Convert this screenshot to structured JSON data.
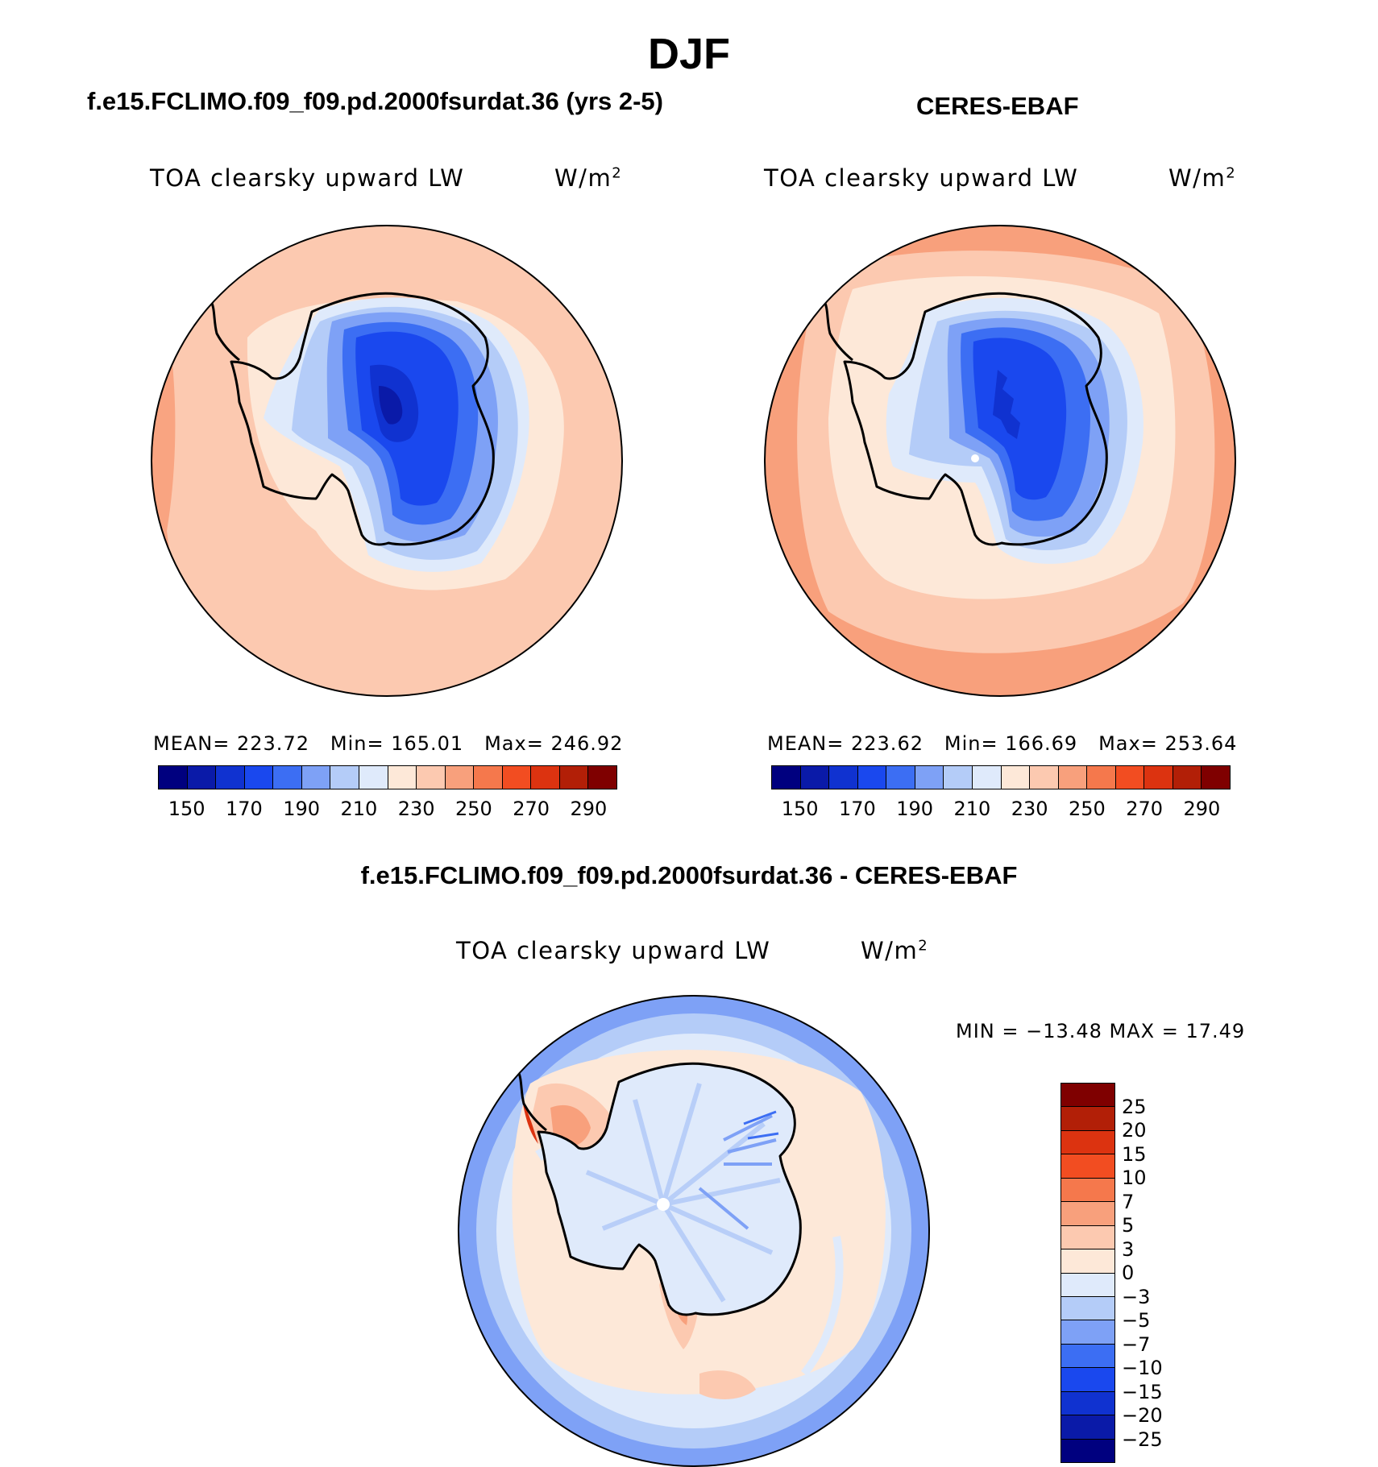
{
  "figure": {
    "title": "DJF",
    "panels": [
      {
        "id": "model",
        "header": "f.e15.FCLIMO.f09_f09.pd.2000fsurdat.36 (yrs 2-5)",
        "variable": "TOA clearsky upward LW",
        "units_base": "W/m",
        "units_exp": "2",
        "stats": {
          "mean_label": "MEAN=",
          "mean": "223.72",
          "min_label": "Min=",
          "min": "165.01",
          "max_label": "Max=",
          "max": "246.92"
        }
      },
      {
        "id": "obs",
        "header": "CERES-EBAF",
        "variable": "TOA clearsky upward LW",
        "units_base": "W/m",
        "units_exp": "2",
        "stats": {
          "mean_label": "MEAN=",
          "mean": "223.62",
          "min_label": "Min=",
          "min": "166.69",
          "max_label": "Max=",
          "max": "253.64"
        }
      },
      {
        "id": "diff",
        "header": "f.e15.FCLIMO.f09_f09.pd.2000fsurdat.36 - CERES-EBAF",
        "variable": "TOA clearsky upward LW",
        "units_base": "W/m",
        "units_exp": "2",
        "stats_text": "MIN = −13.48 MAX =   17.49"
      }
    ],
    "abs_colorbar": {
      "tick_labels": [
        "150",
        "170",
        "190",
        "210",
        "230",
        "250",
        "270",
        "290"
      ],
      "colors": [
        "#00007f",
        "#0a1aa8",
        "#1032d0",
        "#1a48ee",
        "#3c6ef3",
        "#7ea1f6",
        "#b4ccf8",
        "#dfeafb",
        "#fde8d8",
        "#fcc9b0",
        "#f8a07c",
        "#f5784c",
        "#f24d21",
        "#dc3310",
        "#b21f07",
        "#7f0000"
      ]
    },
    "diff_colorbar": {
      "tick_labels": [
        "25",
        "20",
        "15",
        "10",
        "7",
        "5",
        "3",
        "0",
        "−3",
        "−5",
        "−7",
        "−10",
        "−15",
        "−20",
        "−25"
      ],
      "colors": [
        "#7f0000",
        "#b21f07",
        "#dc3310",
        "#f24d21",
        "#f5784c",
        "#f8a07c",
        "#fcc9b0",
        "#fde8d8",
        "#dfeafb",
        "#b4ccf8",
        "#7ea1f6",
        "#3c6ef3",
        "#1a48ee",
        "#1032d0",
        "#0a1aa8",
        "#00007f"
      ]
    }
  }
}
